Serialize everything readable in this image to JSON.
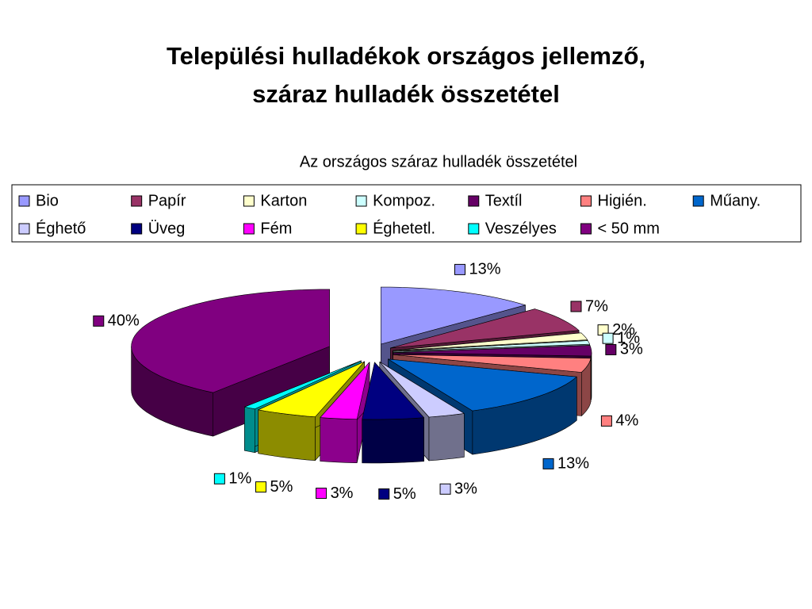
{
  "slide_title": [
    "Települési hulladékok országos jellemző,",
    "száraz hulladék összetétel"
  ],
  "chart_data": {
    "type": "pie3d",
    "title": "Az országos száraz hulladék összetétel",
    "categories": [
      "Bio",
      "Papír",
      "Karton",
      "Kompoz.",
      "Textíl",
      "Higién.",
      "Műany.",
      "Éghető",
      "Üveg",
      "Fém",
      "Éghetetl.",
      "Veszélyes",
      "< 50 mm"
    ],
    "values": [
      13,
      7,
      2,
      1,
      3,
      4,
      13,
      3,
      5,
      3,
      5,
      1,
      40
    ],
    "value_labels": [
      "13%",
      "7%",
      "2%",
      "1%",
      "3%",
      "4%",
      "13%",
      "3%",
      "5%",
      "3%",
      "5%",
      "1%",
      "40%"
    ],
    "colors": [
      "#9999ff",
      "#993366",
      "#ffffcc",
      "#ccffff",
      "#660066",
      "#ff8080",
      "#0066cc",
      "#ccccff",
      "#000080",
      "#ff00ff",
      "#ffff00",
      "#00ffff",
      "#800080"
    ],
    "legend": "top"
  }
}
